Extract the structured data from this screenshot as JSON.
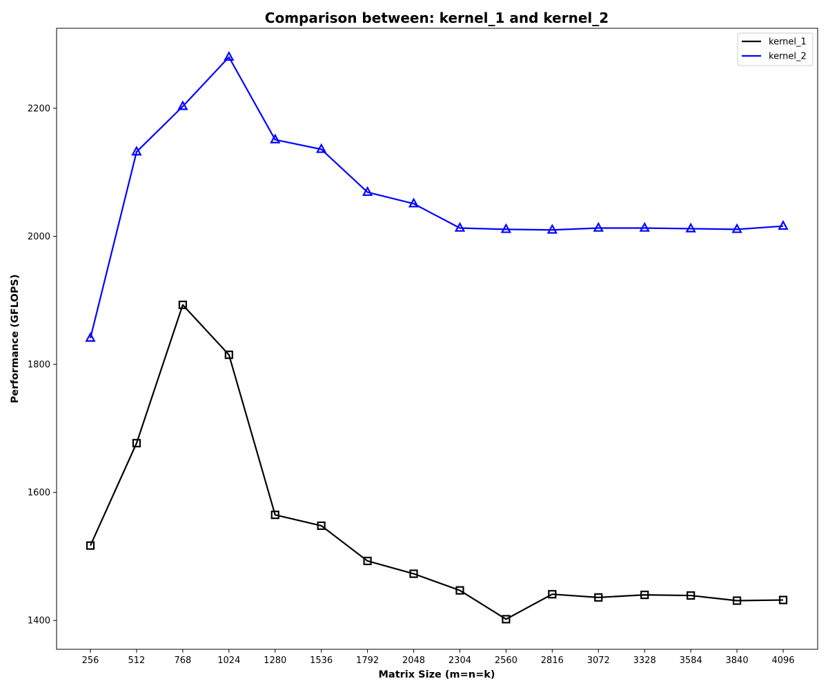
{
  "chart_data": {
    "type": "line",
    "title": "Comparison between: kernel_1 and kernel_2",
    "xlabel": "Matrix Size (m=n=k)",
    "ylabel": "Performance (GFLOPS)",
    "categories": [
      "256",
      "512",
      "768",
      "1024",
      "1280",
      "1536",
      "1792",
      "2048",
      "2304",
      "2560",
      "2816",
      "3072",
      "3328",
      "3584",
      "3840",
      "4096"
    ],
    "ylim": [
      1355,
      2325
    ],
    "yticks": [
      1400,
      1600,
      1800,
      2000,
      2200
    ],
    "grid": false,
    "legend_position": "top-right",
    "series": [
      {
        "name": "kernel_1",
        "color": "#000000",
        "marker": "square",
        "values": [
          1517,
          1677,
          1893,
          1815,
          1565,
          1548,
          1493,
          1473,
          1447,
          1402,
          1441,
          1436,
          1440,
          1439,
          1431,
          1432
        ]
      },
      {
        "name": "kernel_2",
        "color": "#0000ff",
        "marker": "triangle",
        "values": [
          1841,
          2132,
          2203,
          2280,
          2151,
          2136,
          2069,
          2051,
          2013,
          2011,
          2010,
          2013,
          2013,
          2012,
          2011,
          2016
        ]
      }
    ]
  }
}
